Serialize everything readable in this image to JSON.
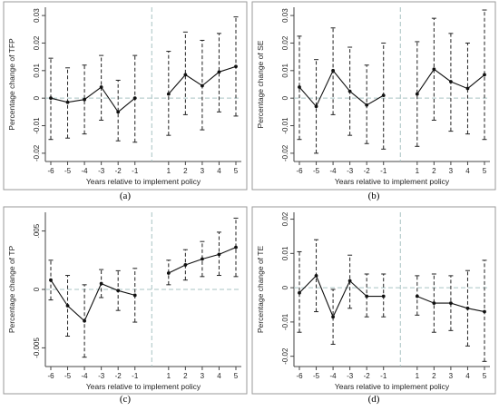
{
  "chart_data": [
    {
      "type": "line",
      "panel_label": "(a)",
      "xlabel": "Years relative to implement policy",
      "ylabel": "Percentage change of TFP",
      "x_ticks": [
        "-6",
        "-5",
        "-4",
        "-3",
        "-2",
        "-1",
        "1",
        "2",
        "3",
        "4",
        "5"
      ],
      "y_ticks": [
        -0.02,
        -0.01,
        0,
        0.01,
        0.02,
        0.03
      ],
      "y_tick_labels": [
        "-0.02",
        "-0.01",
        "0",
        "0.01",
        "0.02",
        "0.03"
      ],
      "ylim": [
        -0.023,
        0.033
      ],
      "points": [
        {
          "x": -6,
          "y": 0.0,
          "lo": -0.015,
          "hi": 0.0145
        },
        {
          "x": -5,
          "y": -0.0015,
          "lo": -0.0145,
          "hi": 0.011
        },
        {
          "x": -4,
          "y": -0.0005,
          "lo": -0.013,
          "hi": 0.012
        },
        {
          "x": -3,
          "y": 0.004,
          "lo": -0.008,
          "hi": 0.0155
        },
        {
          "x": -2,
          "y": -0.005,
          "lo": -0.0155,
          "hi": 0.0065
        },
        {
          "x": -1,
          "y": 0.0,
          "lo": -0.016,
          "hi": 0.0155
        },
        {
          "x": 1,
          "y": 0.0015,
          "lo": -0.0135,
          "hi": 0.017
        },
        {
          "x": 2,
          "y": 0.0085,
          "lo": -0.006,
          "hi": 0.024
        },
        {
          "x": 3,
          "y": 0.0045,
          "lo": -0.0115,
          "hi": 0.021
        },
        {
          "x": 4,
          "y": 0.0095,
          "lo": -0.005,
          "hi": 0.0235
        },
        {
          "x": 5,
          "y": 0.0115,
          "lo": -0.0065,
          "hi": 0.0295
        }
      ]
    },
    {
      "type": "line",
      "panel_label": "(b)",
      "xlabel": "Years relative to implement policy",
      "ylabel": "Percentage change of SE",
      "x_ticks": [
        "-6",
        "-5",
        "-4",
        "-3",
        "-2",
        "-1",
        "1",
        "2",
        "3",
        "4",
        "5"
      ],
      "y_ticks": [
        -0.02,
        -0.01,
        0,
        0.01,
        0.02,
        0.03
      ],
      "y_tick_labels": [
        "-0.02",
        "-0.01",
        "0",
        "0.01",
        "0.02",
        "0.03"
      ],
      "ylim": [
        -0.023,
        0.033
      ],
      "points": [
        {
          "x": -6,
          "y": 0.004,
          "lo": -0.015,
          "hi": 0.0225
        },
        {
          "x": -5,
          "y": -0.003,
          "lo": -0.02,
          "hi": 0.014
        },
        {
          "x": -4,
          "y": 0.01,
          "lo": -0.006,
          "hi": 0.0255
        },
        {
          "x": -3,
          "y": 0.0025,
          "lo": -0.0135,
          "hi": 0.0185
        },
        {
          "x": -2,
          "y": -0.0025,
          "lo": -0.0165,
          "hi": 0.012
        },
        {
          "x": -1,
          "y": 0.001,
          "lo": -0.0185,
          "hi": 0.02
        },
        {
          "x": 1,
          "y": 0.0015,
          "lo": -0.0175,
          "hi": 0.0205
        },
        {
          "x": 2,
          "y": 0.0105,
          "lo": -0.008,
          "hi": 0.029
        },
        {
          "x": 3,
          "y": 0.006,
          "lo": -0.012,
          "hi": 0.0235
        },
        {
          "x": 4,
          "y": 0.0035,
          "lo": -0.013,
          "hi": 0.02
        },
        {
          "x": 5,
          "y": 0.0085,
          "lo": -0.015,
          "hi": 0.032
        }
      ]
    },
    {
      "type": "line",
      "panel_label": "(c)",
      "xlabel": "Years relative to implement policy",
      "ylabel": "Percentage change of TP",
      "x_ticks": [
        "-6",
        "-5",
        "-4",
        "-3",
        "-2",
        "-1",
        "1",
        "2",
        "3",
        "4",
        "5"
      ],
      "y_ticks": [
        -0.005,
        0,
        0.005
      ],
      "y_tick_labels": [
        "-0.005",
        "0",
        ".005"
      ],
      "ylim": [
        -0.0066,
        0.0066
      ],
      "points": [
        {
          "x": -6,
          "y": 0.0008,
          "lo": -0.0009,
          "hi": 0.0025
        },
        {
          "x": -5,
          "y": -0.0014,
          "lo": -0.004,
          "hi": 0.0012
        },
        {
          "x": -4,
          "y": -0.0027,
          "lo": -0.0058,
          "hi": 0.0004
        },
        {
          "x": -3,
          "y": 0.0005,
          "lo": -0.0007,
          "hi": 0.0017
        },
        {
          "x": -2,
          "y": -0.0001,
          "lo": -0.0018,
          "hi": 0.0016
        },
        {
          "x": -1,
          "y": -0.0005,
          "lo": -0.0028,
          "hi": 0.0018
        },
        {
          "x": 1,
          "y": 0.0014,
          "lo": 0.0004,
          "hi": 0.0025
        },
        {
          "x": 2,
          "y": 0.0021,
          "lo": 0.0008,
          "hi": 0.0034
        },
        {
          "x": 3,
          "y": 0.0026,
          "lo": 0.0011,
          "hi": 0.0041
        },
        {
          "x": 4,
          "y": 0.003,
          "lo": 0.0012,
          "hi": 0.0049
        },
        {
          "x": 5,
          "y": 0.0036,
          "lo": 0.0011,
          "hi": 0.0061
        }
      ]
    },
    {
      "type": "line",
      "panel_label": "(d)",
      "xlabel": "Years relative to implement policy",
      "ylabel": "Percentage change of TE",
      "x_ticks": [
        "-6",
        "-5",
        "-4",
        "-3",
        "-2",
        "-1",
        "1",
        "2",
        "3",
        "4",
        "5"
      ],
      "y_ticks": [
        -0.02,
        -0.01,
        0,
        0.01,
        0.02
      ],
      "y_tick_labels": [
        "-0.02",
        "-0.01",
        "0",
        "0.01",
        "0.02"
      ],
      "ylim": [
        -0.023,
        0.022
      ],
      "points": [
        {
          "x": -6,
          "y": -0.0015,
          "lo": -0.013,
          "hi": 0.0105
        },
        {
          "x": -5,
          "y": 0.0035,
          "lo": -0.007,
          "hi": 0.014
        },
        {
          "x": -4,
          "y": -0.0085,
          "lo": -0.0165,
          "hi": -0.0005
        },
        {
          "x": -3,
          "y": 0.002,
          "lo": -0.006,
          "hi": 0.0095
        },
        {
          "x": -2,
          "y": -0.0025,
          "lo": -0.0085,
          "hi": 0.004
        },
        {
          "x": -1,
          "y": -0.0025,
          "lo": -0.0085,
          "hi": 0.004
        },
        {
          "x": 1,
          "y": -0.0025,
          "lo": -0.008,
          "hi": 0.0035
        },
        {
          "x": 2,
          "y": -0.0045,
          "lo": -0.013,
          "hi": 0.004
        },
        {
          "x": 3,
          "y": -0.0045,
          "lo": -0.0125,
          "hi": 0.0035
        },
        {
          "x": 4,
          "y": -0.006,
          "lo": -0.017,
          "hi": 0.005
        },
        {
          "x": 5,
          "y": -0.007,
          "lo": -0.0215,
          "hi": 0.008
        }
      ]
    }
  ]
}
